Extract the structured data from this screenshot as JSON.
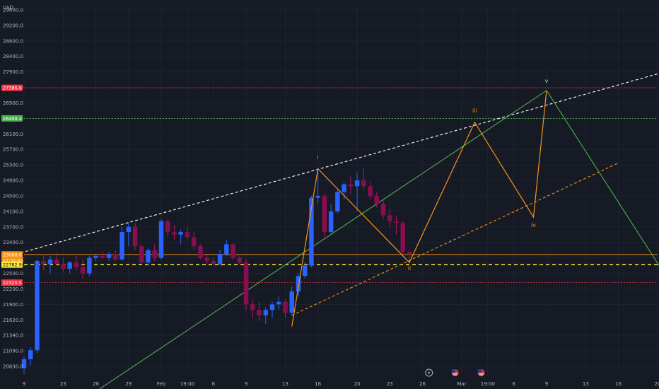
{
  "chart_data": {
    "type": "candlestick",
    "currency_label": "USD",
    "y_ticks": [
      29600.0,
      29200.0,
      28800.0,
      28400.0,
      27900.0,
      27400.0,
      26900.0,
      26500.0,
      26100.0,
      25700.0,
      25300.0,
      24900.0,
      24500.0,
      24100.0,
      23700.0,
      23400.0,
      23000.0,
      22500.0,
      22200.0,
      21900.0,
      21620.0,
      21340.0,
      21090.0,
      20830.0
    ],
    "y_tick_labels": [
      "29600.0",
      "29200.0",
      "28800.0",
      "28400.0",
      "27900.0",
      "27400.0",
      "26900.0",
      "26500.0",
      "26100.0",
      "25700.0",
      "25300.0",
      "24900.0",
      "24500.0",
      "24100.0",
      "23700.0",
      "23400.0",
      "23000.0",
      "22500.0",
      "22200.0",
      "21900.0",
      "21620.0",
      "21340.0",
      "21090.0",
      "20830.0"
    ],
    "x_ticks": [
      {
        "label": "9",
        "i": 0
      },
      {
        "label": "23",
        "i": 6
      },
      {
        "label": "26",
        "i": 11
      },
      {
        "label": "29",
        "i": 16
      },
      {
        "label": "Feb",
        "i": 21
      },
      {
        "label": "19:00",
        "i": 25
      },
      {
        "label": "6",
        "i": 29
      },
      {
        "label": "9",
        "i": 34
      },
      {
        "label": "13",
        "i": 40
      },
      {
        "label": "16",
        "i": 45
      },
      {
        "label": "20",
        "i": 51
      },
      {
        "label": "23",
        "i": 56
      },
      {
        "label": "26",
        "i": 61
      },
      {
        "label": "Mar",
        "i": 67
      },
      {
        "label": "19:00",
        "i": 71
      },
      {
        "label": "6",
        "i": 75
      },
      {
        "label": "9",
        "i": 80
      },
      {
        "label": "13",
        "i": 86
      },
      {
        "label": "16",
        "i": 91
      },
      {
        "label": "20",
        "i": 97
      }
    ],
    "x_index_range": [
      0,
      97
    ],
    "ylim": [
      20700,
      29800
    ],
    "price_lines": [
      {
        "price": 27386.6,
        "label": "27386.6",
        "style": "dotted",
        "color": "#f23645"
      },
      {
        "price": 26499.4,
        "label": "26499.4",
        "style": "dotted",
        "color": "#4caf50"
      },
      {
        "price": 23088.0,
        "label": "23088.0",
        "sub_label": "17:21:53",
        "style": "solid",
        "color": "#f7931a"
      },
      {
        "price": 22782.9,
        "label": "22782.9",
        "style": "dashed",
        "color": "#ffeb3b"
      },
      {
        "price": 22320.5,
        "label": "22320.5",
        "style": "dotted",
        "color": "#f23645"
      }
    ],
    "candles": [
      {
        "o": 20800,
        "h": 21000,
        "l": 20700,
        "c": 20950
      },
      {
        "o": 20950,
        "h": 21150,
        "l": 20850,
        "c": 21100
      },
      {
        "o": 21100,
        "h": 22950,
        "l": 21050,
        "c": 22900
      },
      {
        "o": 22900,
        "h": 23100,
        "l": 22600,
        "c": 22800
      },
      {
        "o": 22800,
        "h": 23050,
        "l": 22500,
        "c": 22950
      },
      {
        "o": 22950,
        "h": 23150,
        "l": 22750,
        "c": 22800
      },
      {
        "o": 22800,
        "h": 23000,
        "l": 22550,
        "c": 22650
      },
      {
        "o": 22650,
        "h": 22900,
        "l": 22500,
        "c": 22850
      },
      {
        "o": 22850,
        "h": 23050,
        "l": 22600,
        "c": 22700
      },
      {
        "o": 22700,
        "h": 22950,
        "l": 22400,
        "c": 22500
      },
      {
        "o": 22500,
        "h": 23050,
        "l": 22450,
        "c": 23000
      },
      {
        "o": 23000,
        "h": 23100,
        "l": 22900,
        "c": 23050
      },
      {
        "o": 23050,
        "h": 23150,
        "l": 22950,
        "c": 23000
      },
      {
        "o": 23000,
        "h": 23150,
        "l": 22900,
        "c": 23100
      },
      {
        "o": 23100,
        "h": 23200,
        "l": 22900,
        "c": 22950
      },
      {
        "o": 22950,
        "h": 23700,
        "l": 22900,
        "c": 23600
      },
      {
        "o": 23600,
        "h": 23800,
        "l": 23300,
        "c": 23700
      },
      {
        "o": 23700,
        "h": 23800,
        "l": 23200,
        "c": 23300
      },
      {
        "o": 23300,
        "h": 23350,
        "l": 22800,
        "c": 22850
      },
      {
        "o": 22850,
        "h": 23250,
        "l": 22800,
        "c": 23200
      },
      {
        "o": 23200,
        "h": 23350,
        "l": 22900,
        "c": 23000
      },
      {
        "o": 23000,
        "h": 23900,
        "l": 22950,
        "c": 23850
      },
      {
        "o": 23850,
        "h": 23900,
        "l": 23500,
        "c": 23600
      },
      {
        "o": 23600,
        "h": 23750,
        "l": 23450,
        "c": 23550
      },
      {
        "o": 23550,
        "h": 23650,
        "l": 23350,
        "c": 23600
      },
      {
        "o": 23600,
        "h": 23700,
        "l": 23450,
        "c": 23500
      },
      {
        "o": 23500,
        "h": 23600,
        "l": 23200,
        "c": 23300
      },
      {
        "o": 23300,
        "h": 23350,
        "l": 22950,
        "c": 23000
      },
      {
        "o": 23000,
        "h": 23100,
        "l": 22800,
        "c": 22900
      },
      {
        "o": 22900,
        "h": 23000,
        "l": 22750,
        "c": 22800
      },
      {
        "o": 22800,
        "h": 23200,
        "l": 22750,
        "c": 23100
      },
      {
        "o": 23100,
        "h": 23450,
        "l": 23050,
        "c": 23350
      },
      {
        "o": 23350,
        "h": 23400,
        "l": 22950,
        "c": 23000
      },
      {
        "o": 23000,
        "h": 23050,
        "l": 22800,
        "c": 22850
      },
      {
        "o": 22850,
        "h": 22950,
        "l": 21800,
        "c": 21900
      },
      {
        "o": 21900,
        "h": 22000,
        "l": 21650,
        "c": 21800
      },
      {
        "o": 21800,
        "h": 21950,
        "l": 21600,
        "c": 21700
      },
      {
        "o": 21700,
        "h": 21850,
        "l": 21550,
        "c": 21800
      },
      {
        "o": 21800,
        "h": 21950,
        "l": 21650,
        "c": 21900
      },
      {
        "o": 21900,
        "h": 22050,
        "l": 21800,
        "c": 21950
      },
      {
        "o": 21950,
        "h": 22000,
        "l": 21650,
        "c": 21750
      },
      {
        "o": 21750,
        "h": 22250,
        "l": 21700,
        "c": 22150
      },
      {
        "o": 22150,
        "h": 22500,
        "l": 22050,
        "c": 22450
      },
      {
        "o": 22450,
        "h": 22850,
        "l": 22400,
        "c": 22750
      },
      {
        "o": 22750,
        "h": 24500,
        "l": 22700,
        "c": 24450
      },
      {
        "o": 24450,
        "h": 25150,
        "l": 24300,
        "c": 24500
      },
      {
        "o": 24500,
        "h": 24550,
        "l": 23500,
        "c": 23600
      },
      {
        "o": 23600,
        "h": 24300,
        "l": 23550,
        "c": 24100
      },
      {
        "o": 24100,
        "h": 24650,
        "l": 24050,
        "c": 24600
      },
      {
        "o": 24600,
        "h": 24850,
        "l": 24400,
        "c": 24800
      },
      {
        "o": 24800,
        "h": 25000,
        "l": 24550,
        "c": 24750
      },
      {
        "o": 24750,
        "h": 25100,
        "l": 24100,
        "c": 24900
      },
      {
        "o": 24900,
        "h": 25200,
        "l": 24650,
        "c": 24750
      },
      {
        "o": 24750,
        "h": 24850,
        "l": 24400,
        "c": 24500
      },
      {
        "o": 24500,
        "h": 24600,
        "l": 24200,
        "c": 24300
      },
      {
        "o": 24300,
        "h": 24400,
        "l": 23900,
        "c": 24000
      },
      {
        "o": 24000,
        "h": 24150,
        "l": 23700,
        "c": 23850
      },
      {
        "o": 23850,
        "h": 24000,
        "l": 23550,
        "c": 23800
      },
      {
        "o": 23800,
        "h": 23850,
        "l": 23100,
        "c": 23150
      },
      {
        "o": 23150,
        "h": 23200,
        "l": 22950,
        "c": 23088
      }
    ],
    "trendlines": [
      {
        "name": "upper-channel",
        "color": "#ffffff",
        "dash": "4,3",
        "points": [
          {
            "i": -0.5,
            "p": 23130
          },
          {
            "i": 104,
            "p": 28250
          }
        ]
      },
      {
        "name": "lower-channel",
        "color": "#f7931a",
        "dash": "4,3",
        "points": [
          {
            "i": 41,
            "p": 21700
          },
          {
            "i": 91,
            "p": 25350
          }
        ]
      },
      {
        "name": "green-trend",
        "color": "#4caf50",
        "dash": "",
        "points": [
          {
            "i": 9.5,
            "p": 20300
          },
          {
            "i": 80,
            "p": 27300
          }
        ]
      },
      {
        "name": "green-down",
        "color": "#4caf50",
        "dash": "",
        "points": [
          {
            "i": 80,
            "p": 27300
          },
          {
            "i": 98,
            "p": 22500
          }
        ]
      }
    ],
    "wave_path": {
      "color": "#f7931a",
      "points": [
        {
          "i": 41,
          "p": 21500
        },
        {
          "i": 45,
          "p": 25200
        },
        {
          "i": 59,
          "p": 22850
        },
        {
          "i": 69,
          "p": 26400
        },
        {
          "i": 78,
          "p": 23950
        },
        {
          "i": 80,
          "p": 27300
        }
      ]
    },
    "wave_labels": [
      {
        "text": "i",
        "i": 45,
        "p": 25450,
        "color": "#f7931a"
      },
      {
        "text": "ii",
        "i": 59,
        "p": 22600,
        "color": "#f7931a"
      },
      {
        "text": "iii",
        "i": 69,
        "p": 26650,
        "color": "#f7931a"
      },
      {
        "text": "iv",
        "i": 78,
        "p": 23700,
        "color": "#f7931a"
      },
      {
        "text": "v",
        "i": 80,
        "p": 27550,
        "color": "#a5d6a7"
      }
    ],
    "event_icons": [
      {
        "name": "flash-event-icon",
        "i": 62
      },
      {
        "name": "us-flag-icon",
        "i": 66
      },
      {
        "name": "us-flag-icon",
        "i": 70
      }
    ]
  }
}
